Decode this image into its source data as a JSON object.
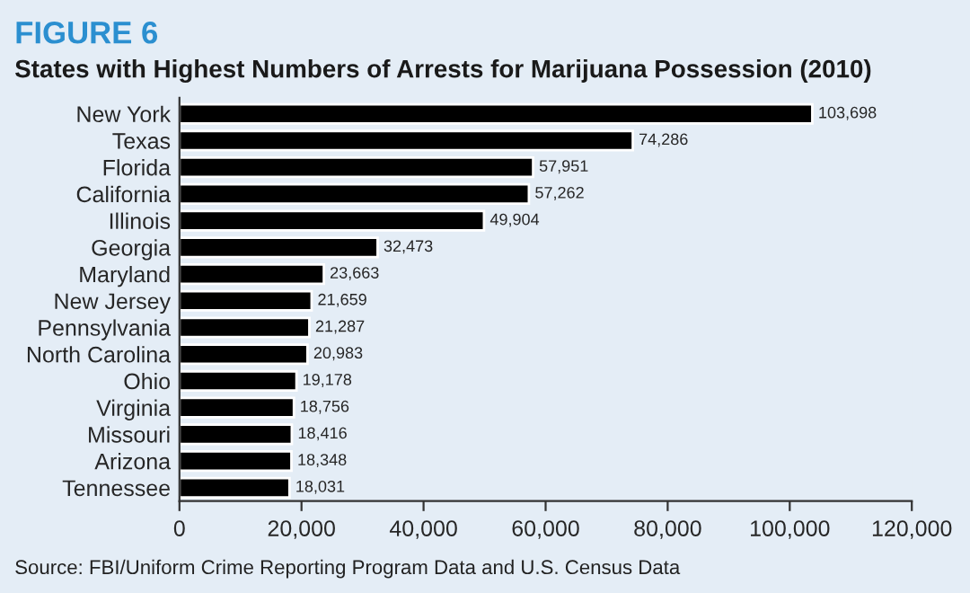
{
  "chart_data": {
    "type": "bar",
    "orientation": "horizontal",
    "title": "FIGURE 6",
    "subtitle": "States with Highest Numbers of Arrests for Marijuana Possession (2010)",
    "categories": [
      "New York",
      "Texas",
      "Florida",
      "California",
      "Illinois",
      "Georgia",
      "Maryland",
      "New Jersey",
      "Pennsylvania",
      "North Carolina",
      "Ohio",
      "Virginia",
      "Missouri",
      "Arizona",
      "Tennessee"
    ],
    "values": [
      103698,
      74286,
      57951,
      57262,
      49904,
      32473,
      23663,
      21659,
      21287,
      20983,
      19178,
      18756,
      18416,
      18348,
      18031
    ],
    "value_labels": [
      "103,698",
      "74,286",
      "57,951",
      "57,262",
      "49,904",
      "32,473",
      "23,663",
      "21,659",
      "21,287",
      "20,983",
      "19,178",
      "18,756",
      "18,416",
      "18,348",
      "18,031"
    ],
    "color": "#000000",
    "xlim": [
      0,
      120000
    ],
    "xticks": [
      0,
      {
        "value": 20000,
        "label": "20,000"
      },
      {
        "value": 40000,
        "label": "40,000"
      },
      {
        "value": 60000,
        "label": "60,000"
      },
      {
        "value": 80000,
        "label": "80,000"
      },
      {
        "value": 100000,
        "label": "100,000"
      },
      {
        "value": 120000,
        "label": "120,000"
      }
    ],
    "annotations": [
      "Source: FBI/Uniform Crime Reporting Program Data and U.S. Census Data"
    ],
    "grid": false
  }
}
